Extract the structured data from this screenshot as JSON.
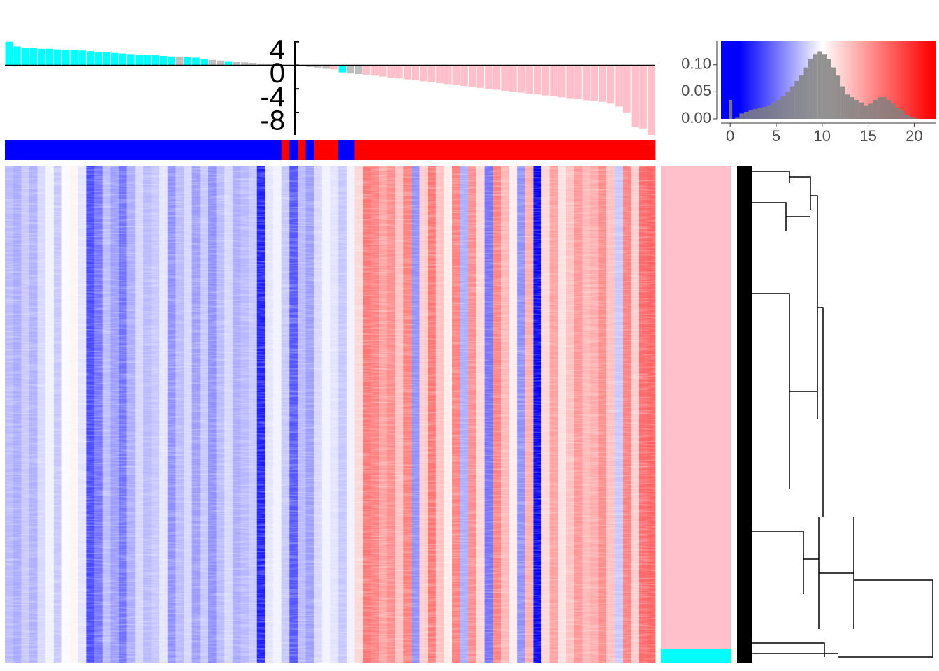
{
  "chart_data": [
    {
      "type": "bar",
      "values": [
        4.0,
        3.2,
        3.0,
        2.9,
        2.8,
        2.8,
        2.7,
        2.6,
        2.6,
        2.5,
        2.4,
        2.3,
        2.2,
        2.1,
        2.0,
        1.9,
        1.8,
        1.8,
        1.7,
        1.6,
        1.5,
        1.4,
        1.4,
        1.3,
        1.0,
        0.9,
        0.8,
        0.7,
        0.6,
        0.5,
        0.4,
        0.3,
        0.2,
        0.1,
        0.05,
        0.0,
        -0.05,
        -0.3,
        -0.4,
        -0.6,
        -0.7,
        -1.2,
        -1.4,
        -1.5,
        -1.6,
        -1.76,
        -1.92,
        -2.08,
        -2.24,
        -2.4,
        -2.56,
        -2.72,
        -2.88,
        -3.04,
        -3.2,
        -3.36,
        -3.52,
        -3.68,
        -3.84,
        -4.0,
        -4.16,
        -4.32,
        -4.48,
        -4.64,
        -4.8,
        -4.96,
        -5.12,
        -5.28,
        -5.44,
        -5.6,
        -5.76,
        -5.92,
        -6.08,
        -6.2,
        -6.5,
        -7.0,
        -8.0,
        -10.5,
        -10.7,
        -11.8
      ],
      "colors": [
        "#00ffff",
        "#00ffff",
        "#00ffff",
        "#00ffff",
        "#00ffff",
        "#00ffff",
        "#00ffff",
        "#00ffff",
        "#00ffff",
        "#00ffff",
        "#00ffff",
        "#00ffff",
        "#00ffff",
        "#00ffff",
        "#00ffff",
        "#00ffff",
        "#00ffff",
        "#00ffff",
        "#00ffff",
        "#00ffff",
        "#00ffff",
        "#bebebe",
        "#00ffff",
        "#00ffff",
        "#00ffff",
        "#bebebe",
        "#bebebe",
        "#00ffff",
        "#bebebe",
        "#bebebe",
        "#bebebe",
        "#bebebe",
        "#bebebe",
        "#bebebe",
        "#bebebe",
        "#bebebe",
        "#bebebe",
        "#bebebe",
        "#bebebe",
        "#bebebe",
        "#ffc0cb",
        "#00ffff",
        "#bebebe",
        "#bebebe",
        "#ffc0cb",
        "#ffc0cb",
        "#ffc0cb",
        "#ffc0cb",
        "#ffc0cb",
        "#ffc0cb",
        "#ffc0cb",
        "#ffc0cb",
        "#ffc0cb",
        "#ffc0cb",
        "#ffc0cb",
        "#ffc0cb",
        "#ffc0cb",
        "#ffc0cb",
        "#ffc0cb",
        "#ffc0cb",
        "#ffc0cb",
        "#ffc0cb",
        "#ffc0cb",
        "#ffc0cb",
        "#ffc0cb",
        "#ffc0cb",
        "#ffc0cb",
        "#ffc0cb",
        "#ffc0cb",
        "#ffc0cb",
        "#ffc0cb",
        "#ffc0cb",
        "#ffc0cb",
        "#ffc0cb",
        "#ffc0cb",
        "#ffc0cb",
        "#ffc0cb",
        "#ffc0cb",
        "#ffc0cb",
        "#ffc0cb"
      ],
      "ylim": [
        -11.8,
        4.2
      ],
      "yticks": [
        4,
        0,
        -4,
        -8
      ]
    },
    {
      "type": "heatmap",
      "column_values": [
        7.5,
        7.0,
        8.0,
        7.2,
        8.5,
        9.5,
        8.0,
        9.8,
        10.5,
        9.0,
        3.5,
        5.0,
        7.5,
        6.5,
        5.0,
        7.0,
        8.5,
        7.5,
        8.0,
        9.0,
        6.0,
        7.5,
        8.5,
        6.5,
        8.0,
        6.0,
        7.5,
        8.5,
        7.0,
        7.5,
        8.0,
        2.0,
        9.0,
        9.5,
        8.0,
        4.0,
        7.5,
        6.5,
        8.5,
        9.5,
        9.0,
        8.0,
        9.5,
        12.0,
        16.5,
        16.0,
        14.5,
        15.5,
        13.0,
        16.0,
        6.0,
        12.5,
        16.5,
        13.0,
        11.0,
        16.0,
        7.0,
        15.5,
        12.0,
        5.0,
        16.0,
        13.5,
        11.0,
        6.0,
        14.0,
        1.0,
        12.0,
        14.5,
        11.5,
        13.0,
        15.0,
        13.5,
        14.0,
        15.5,
        13.0,
        8.0,
        16.0,
        12.5,
        17.0,
        17.5
      ],
      "column_groups": [
        "#0000ff",
        "#0000ff",
        "#0000ff",
        "#0000ff",
        "#0000ff",
        "#0000ff",
        "#0000ff",
        "#0000ff",
        "#0000ff",
        "#0000ff",
        "#0000ff",
        "#0000ff",
        "#0000ff",
        "#0000ff",
        "#0000ff",
        "#0000ff",
        "#0000ff",
        "#0000ff",
        "#0000ff",
        "#0000ff",
        "#0000ff",
        "#0000ff",
        "#0000ff",
        "#0000ff",
        "#0000ff",
        "#0000ff",
        "#0000ff",
        "#0000ff",
        "#0000ff",
        "#0000ff",
        "#0000ff",
        "#0000ff",
        "#0000ff",
        "#0000ff",
        "#ff0000",
        "#0000ff",
        "#ff0000",
        "#0000ff",
        "#ff0000",
        "#ff0000",
        "#ff0000",
        "#0000ff",
        "#0000ff",
        "#ff0000",
        "#ff0000",
        "#ff0000",
        "#ff0000",
        "#ff0000",
        "#ff0000",
        "#ff0000",
        "#ff0000",
        "#ff0000",
        "#ff0000",
        "#ff0000",
        "#ff0000",
        "#ff0000",
        "#ff0000",
        "#ff0000",
        "#ff0000",
        "#ff0000",
        "#ff0000",
        "#ff0000",
        "#ff0000",
        "#ff0000",
        "#ff0000",
        "#ff0000",
        "#ff0000",
        "#ff0000",
        "#ff0000",
        "#ff0000",
        "#ff0000",
        "#ff0000",
        "#ff0000",
        "#ff0000",
        "#ff0000",
        "#ff0000",
        "#ff0000",
        "#ff0000",
        "#ff0000",
        "#ff0000"
      ],
      "row_groups": [
        {
          "color": "#ffc0cb",
          "count": 660
        },
        {
          "color": "#00ffff",
          "count": 19
        }
      ],
      "color_stops": [
        {
          "value": 1,
          "color": "#0000ff"
        },
        {
          "value": 10,
          "color": "#ffffff"
        },
        {
          "value": 22,
          "color": "#ff0000"
        }
      ]
    },
    {
      "type": "histogram",
      "bins": [
        0,
        0.5,
        1,
        1.5,
        2,
        2.5,
        3,
        3.5,
        4,
        4.5,
        5,
        5.5,
        6,
        6.5,
        7,
        7.5,
        8,
        8.5,
        9,
        9.5,
        10,
        10.5,
        11,
        11.5,
        12,
        12.5,
        13,
        13.5,
        14,
        14.5,
        15,
        15.5,
        16,
        16.5,
        17,
        17.5,
        18,
        18.5,
        19,
        19.5,
        20,
        20.5,
        21
      ],
      "counts": [
        0.035,
        0.002,
        0.01,
        0.013,
        0.016,
        0.018,
        0.02,
        0.022,
        0.025,
        0.03,
        0.035,
        0.042,
        0.05,
        0.06,
        0.07,
        0.08,
        0.095,
        0.11,
        0.12,
        0.125,
        0.12,
        0.11,
        0.095,
        0.08,
        0.06,
        0.045,
        0.04,
        0.035,
        0.03,
        0.025,
        0.028,
        0.035,
        0.04,
        0.04,
        0.035,
        0.028,
        0.02,
        0.015,
        0.008,
        0.003,
        0.001,
        0
      ],
      "color": "#808080",
      "xlim": [
        -1,
        22.4
      ],
      "ylim": [
        0,
        0.145
      ],
      "xticks": [
        0,
        5,
        10,
        15,
        20
      ],
      "yticks": [
        {
          "value": 0,
          "label": "0.00"
        },
        {
          "value": 0.05,
          "label": "0.05"
        },
        {
          "value": 0.1,
          "label": "0.10"
        }
      ]
    }
  ]
}
